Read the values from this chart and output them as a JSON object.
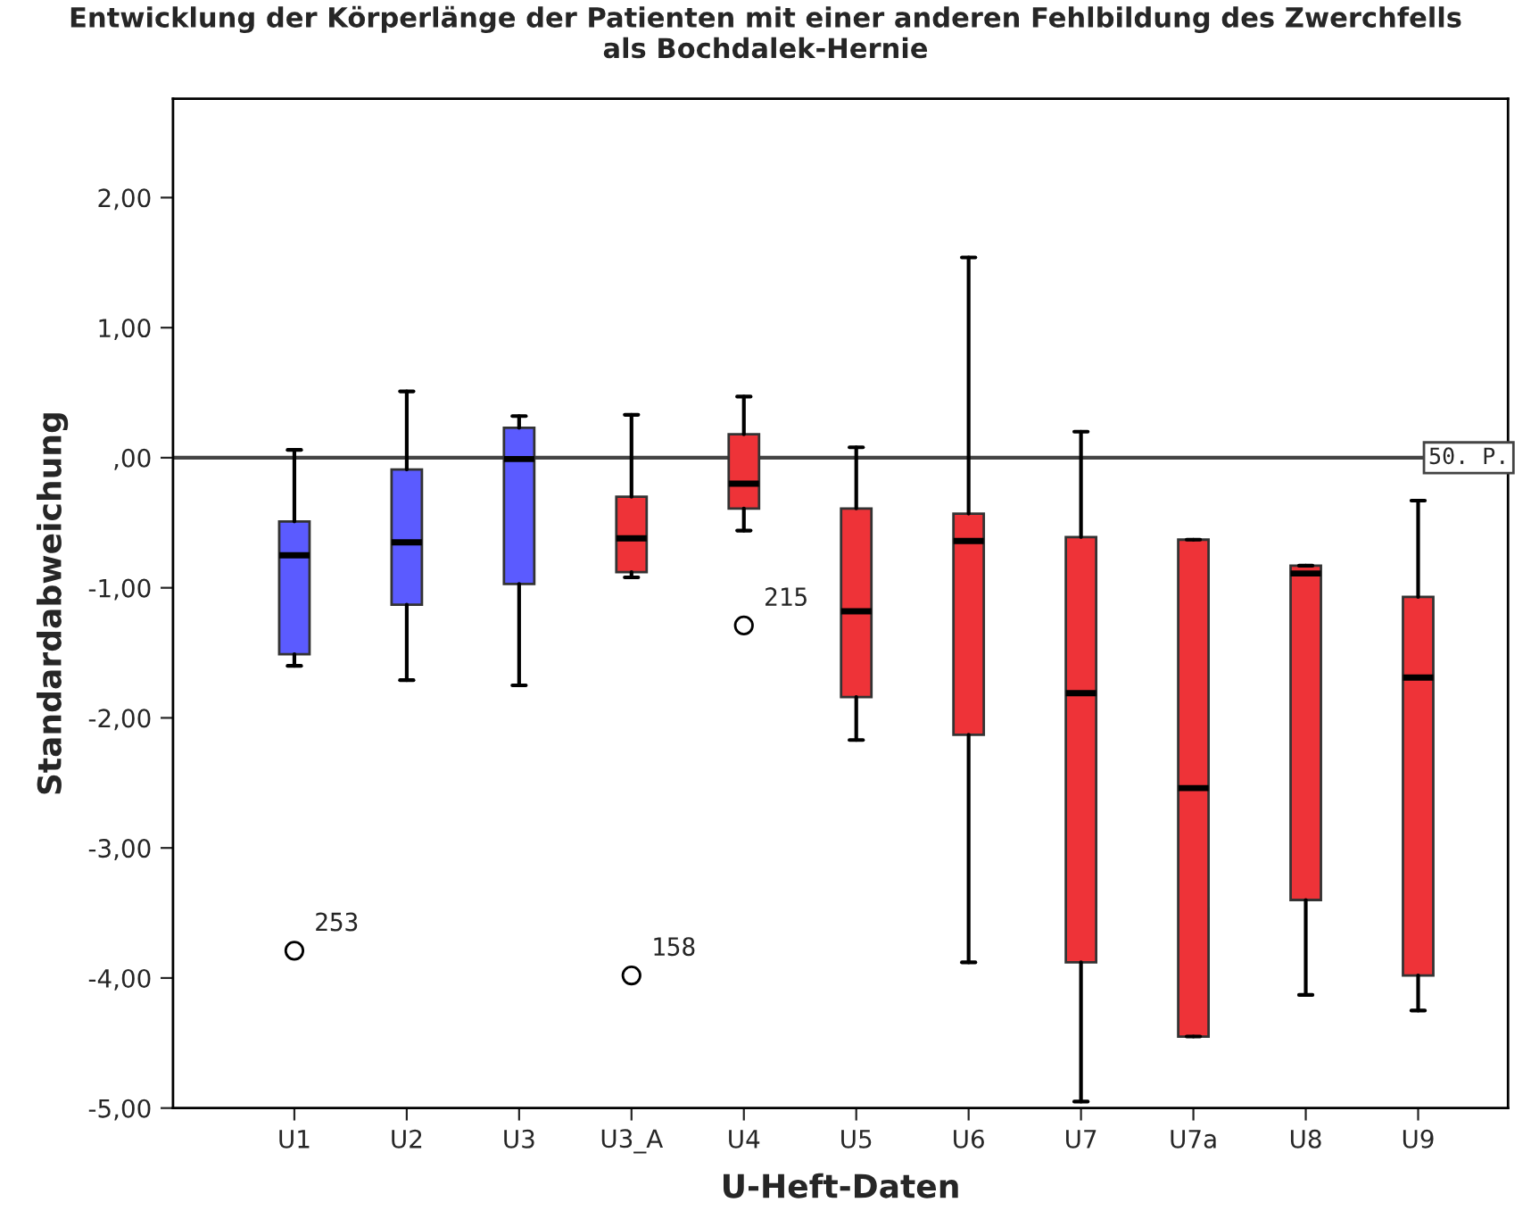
{
  "chart_data": {
    "type": "box",
    "title": "Entwicklung der Körperlänge der Patienten mit einer anderen Fehlbildung des Zwerchfells\nals Bochdalek-Hernie",
    "xlabel": "U-Heft-Daten",
    "ylabel": "Standardabweichung",
    "categories": [
      "U1",
      "U2",
      "U3",
      "U3_A",
      "U4",
      "U5",
      "U6",
      "U7",
      "U7a",
      "U8",
      "U9"
    ],
    "colors": [
      "#5b5bff",
      "#5b5bff",
      "#5b5bff",
      "#ee3338",
      "#ee3338",
      "#ee3338",
      "#ee3338",
      "#ee3338",
      "#ee3338",
      "#ee3338",
      "#ee3338"
    ],
    "boxes": [
      {
        "low": -1.6,
        "q1": -1.51,
        "median": -0.75,
        "q3": -0.49,
        "high": 0.06,
        "outliers": [
          -3.79
        ]
      },
      {
        "low": -1.71,
        "q1": -1.13,
        "median": -0.65,
        "q3": -0.09,
        "high": 0.51
      },
      {
        "low": -1.75,
        "q1": -0.97,
        "median": -0.01,
        "q3": 0.23,
        "high": 0.32
      },
      {
        "low": -0.92,
        "q1": -0.88,
        "median": -0.62,
        "q3": -0.3,
        "high": 0.33,
        "outliers": [
          -3.98
        ]
      },
      {
        "low": -0.56,
        "q1": -0.39,
        "median": -0.2,
        "q3": 0.18,
        "high": 0.47,
        "outliers": [
          -1.29
        ]
      },
      {
        "low": -2.17,
        "q1": -1.84,
        "median": -1.18,
        "q3": -0.39,
        "high": 0.08
      },
      {
        "low": -3.88,
        "q1": -2.13,
        "median": -0.64,
        "q3": -0.43,
        "high": 1.54
      },
      {
        "low": -4.95,
        "q1": -3.88,
        "median": -1.81,
        "q3": -0.61,
        "high": 0.2
      },
      {
        "low": -4.45,
        "q1": -4.45,
        "median": -2.54,
        "q3": -0.63,
        "high": -0.63
      },
      {
        "low": -4.13,
        "q1": -3.4,
        "median": -0.89,
        "q3": -0.83,
        "high": -0.83
      },
      {
        "low": -4.25,
        "q1": -3.98,
        "median": -1.69,
        "q3": -1.07,
        "high": -0.33
      }
    ],
    "ylim": [
      -5.0,
      2.76
    ],
    "yticks": [
      {
        "value": -5,
        "label": "-5,00"
      },
      {
        "value": -4,
        "label": "-4,00"
      },
      {
        "value": -3,
        "label": "-3,00"
      },
      {
        "value": -2,
        "label": "-2,00"
      },
      {
        "value": -1,
        "label": "-1,00"
      },
      {
        "value": 0,
        "label": ",00"
      },
      {
        "value": 1,
        "label": "1,00"
      },
      {
        "value": 2,
        "label": "2,00"
      }
    ],
    "ref_lines": [
      {
        "axis": "y",
        "value": 0,
        "label": "50. P.",
        "color": "#444444"
      }
    ],
    "annotations": [
      "253",
      "158",
      "215"
    ],
    "grid": false,
    "legend": false
  }
}
